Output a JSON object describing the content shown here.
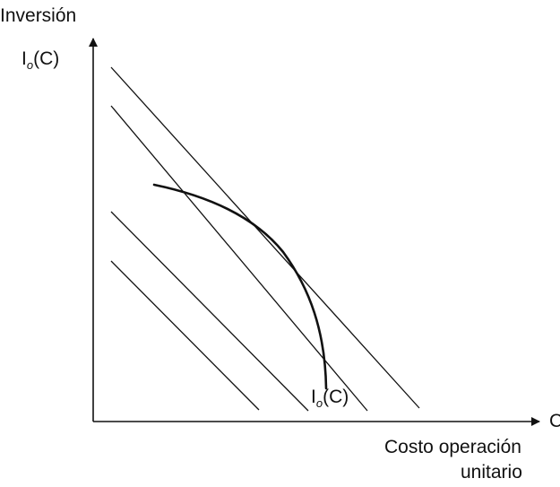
{
  "diagram": {
    "y_axis": {
      "title": "Inversión",
      "curve_label": {
        "main": "I",
        "sub": "o",
        "arg": "(C)"
      }
    },
    "x_axis": {
      "variable": "C",
      "title_line1": "Costo operación",
      "title_line2": "unitario"
    },
    "curve_label": {
      "main": "I",
      "sub": "o",
      "arg": "(C)"
    },
    "colors": {
      "ink": "#111111",
      "background": "#ffffff"
    },
    "elements": {
      "iso_cost_lines": 4,
      "curve": "concave investment-operating cost frontier I_o(C), tangent to the outermost iso-cost line"
    }
  }
}
